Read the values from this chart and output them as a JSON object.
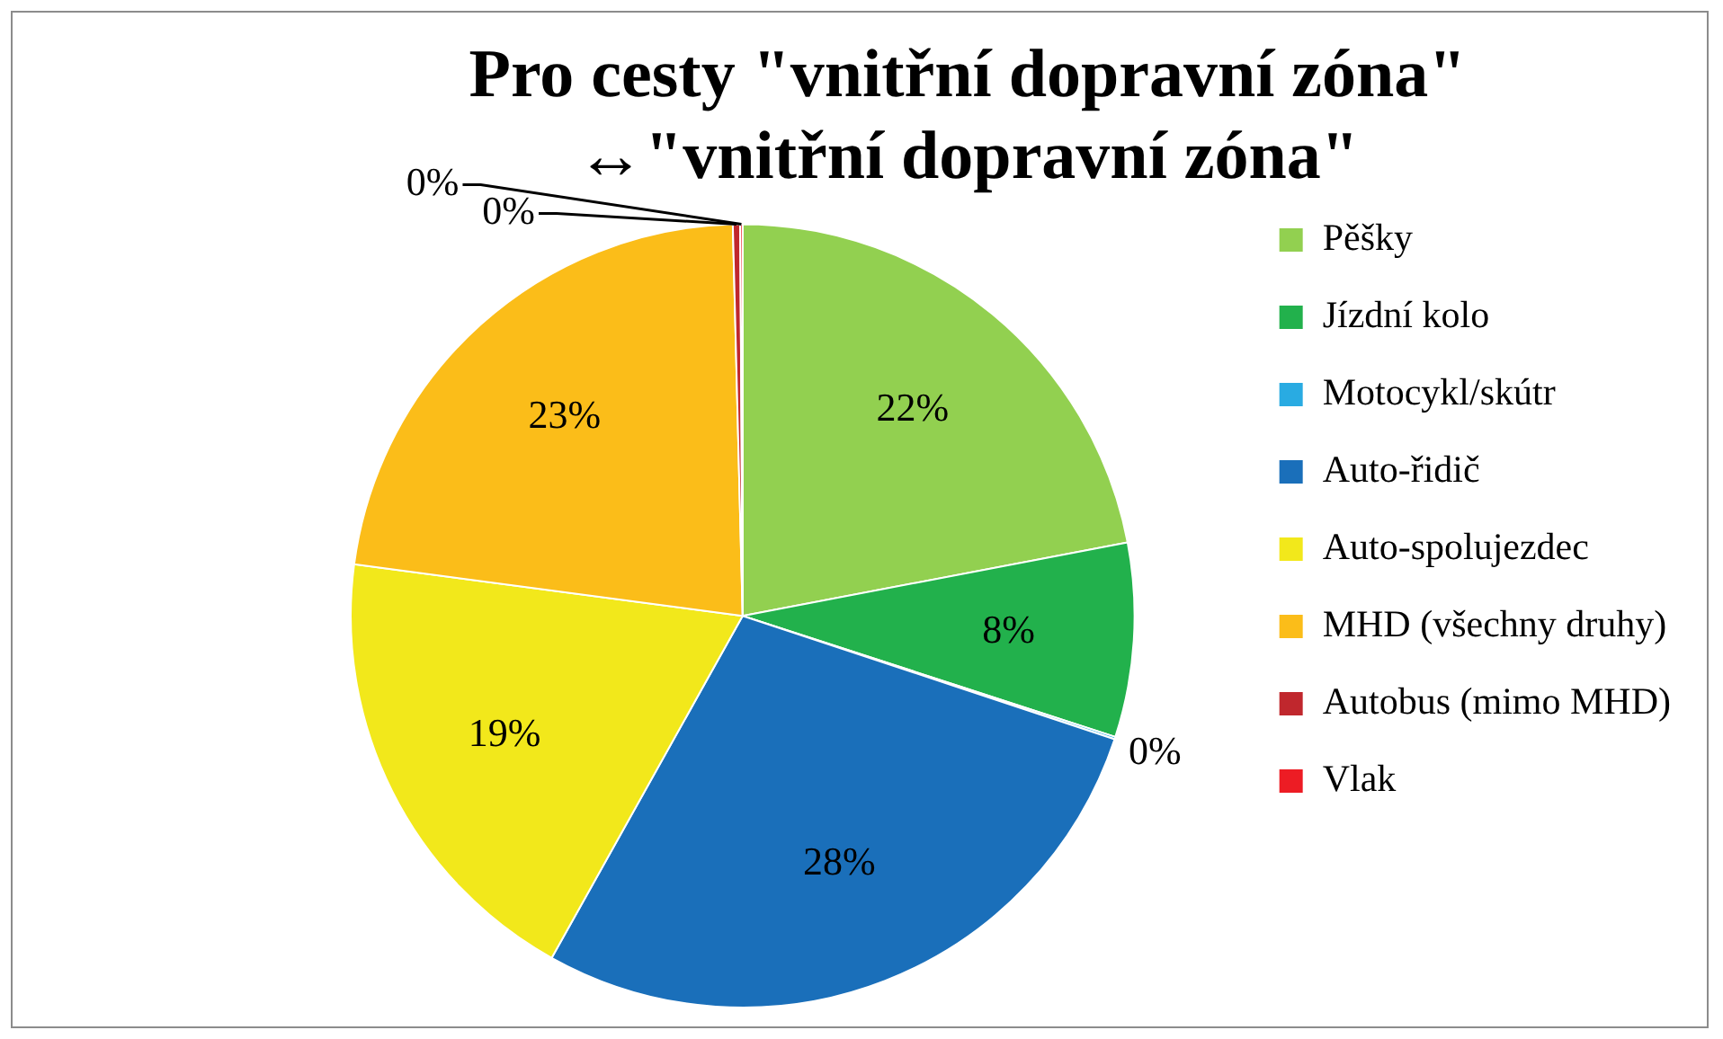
{
  "chart_data": {
    "type": "pie",
    "title": "Pro cesty \"vnitřní dopravní zóna\"\n↔\"vnitřní dopravní zóna\"",
    "categories": [
      "Pěšky",
      "Jízdní kolo",
      "Motocykl/skútr",
      "Auto-řidič",
      "Auto-spolujezdec",
      "MHD (všechny druhy)",
      "Autobus (mimo MHD)",
      "Vlak"
    ],
    "values": [
      22,
      8,
      0.1,
      28,
      19,
      22.5,
      0.3,
      0.1
    ],
    "value_labels": [
      "22%",
      "8%",
      "0%",
      "28%",
      "19%",
      "23%",
      "0%",
      "0%"
    ],
    "colors": [
      "#92d050",
      "#22b14c",
      "#29abe2",
      "#1a6fba",
      "#f2e81b",
      "#fbbd19",
      "#c0272d",
      "#ed1c24"
    ],
    "legend": "right"
  }
}
